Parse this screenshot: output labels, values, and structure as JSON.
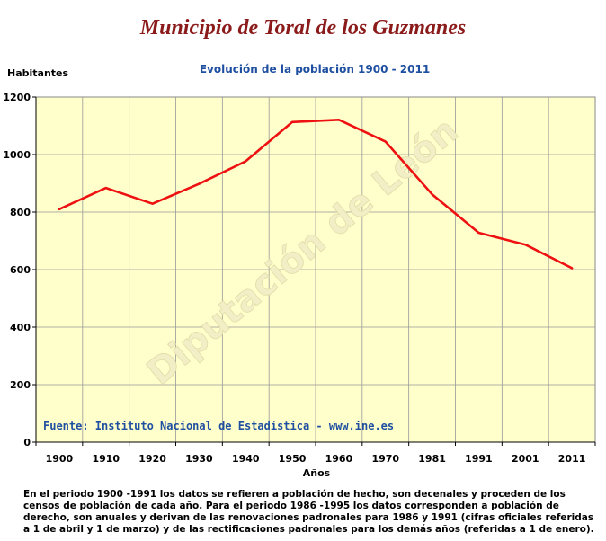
{
  "title": "Municipio de Toral de los Guzmanes",
  "watermark": "Diputación de León",
  "source": "Fuente: Instituto Nacional de Estadística - www.ine.es",
  "footnote": "En el periodo 1900 -1991 los datos se refieren a población de hecho, son decenales y proceden de los censos de población de cada año. Para el periodo 1986 -1995 los datos corresponden a población de derecho, son anuales y derivan de las renovaciones padronales para 1986 y 1991 (cifras oficiales referidas a 1 de abril y 1 de marzo) y de las rectificaciones padronales para los demás años (referidas a 1 de enero).",
  "colors": {
    "line": "#ee1111",
    "plot_bg": "#ffffcc",
    "grid": "#999999",
    "title": "#8b1b1b",
    "subtitle": "#1f4fa0"
  },
  "chart_data": {
    "type": "line",
    "title": "Evolución de la población 1900 - 2011",
    "xlabel": "Años",
    "ylabel": "Habitantes",
    "categories": [
      "1900",
      "1910",
      "1920",
      "1930",
      "1940",
      "1950",
      "1960",
      "1970",
      "1981",
      "1991",
      "2001",
      "2011"
    ],
    "series": [
      {
        "values": [
          810,
          884,
          829,
          898,
          977,
          1113,
          1121,
          1045,
          862,
          728,
          687,
          605
        ]
      }
    ],
    "ylim": [
      0,
      1200
    ],
    "yticks": [
      0,
      200,
      400,
      600,
      800,
      1000,
      1200
    ],
    "grid": true
  }
}
